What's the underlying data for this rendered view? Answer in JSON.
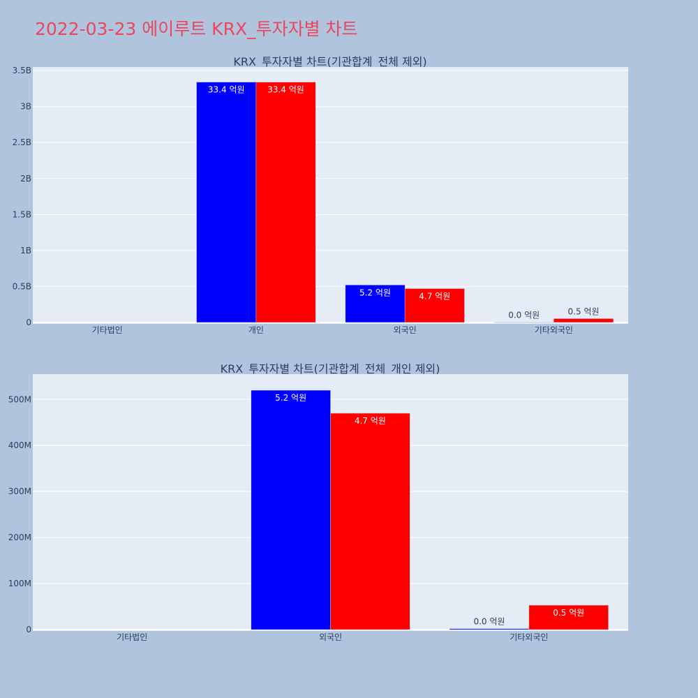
{
  "page": {
    "title": "2022-03-23 에이루트 KRX_투자자별 차트"
  },
  "chart_data": [
    {
      "type": "bar",
      "title": "KRX_투자자별 차트(기관합계_전체 제외)",
      "categories": [
        "기타법인",
        "개인",
        "외국인",
        "기타외국인"
      ],
      "series": [
        {
          "values": [
            0,
            3340000000,
            520000000,
            2000000
          ],
          "labels": [
            "",
            "33.4 억원",
            "5.2 억원",
            "0.0 억원"
          ],
          "color": "#0000ff"
        },
        {
          "values": [
            0,
            3340000000,
            470000000,
            53000000
          ],
          "labels": [
            "",
            "33.4 억원",
            "4.7 억원",
            "0.5 억원"
          ],
          "color": "#ff0000"
        }
      ],
      "ylim": [
        -20000000,
        3550000000
      ],
      "yticks": [
        0,
        500000000,
        1000000000,
        1500000000,
        2000000000,
        2500000000,
        3000000000,
        3500000000
      ],
      "ytick_labels": [
        "0",
        "0.5B",
        "1B",
        "1.5B",
        "2B",
        "2.5B",
        "3B",
        "3.5B"
      ],
      "grid": true,
      "plot_background": "#e5ecf6"
    },
    {
      "type": "bar",
      "title": "KRX_투자자별 차트(기관합계_전체_개인 제외)",
      "categories": [
        "기타법인",
        "외국인",
        "기타외국인"
      ],
      "series": [
        {
          "values": [
            0,
            520000000,
            2000000
          ],
          "labels": [
            "",
            "5.2 억원",
            "0.0 억원"
          ],
          "color": "#0000ff"
        },
        {
          "values": [
            0,
            470000000,
            53000000
          ],
          "labels": [
            "",
            "4.7 억원",
            "0.5 억원"
          ],
          "color": "#ff0000"
        }
      ],
      "ylim": [
        -3000000,
        555000000
      ],
      "yticks": [
        0,
        100000000,
        200000000,
        300000000,
        400000000,
        500000000
      ],
      "ytick_labels": [
        "0",
        "100M",
        "200M",
        "300M",
        "400M",
        "500M"
      ],
      "grid": true,
      "plot_background": "#e5ecf6"
    }
  ]
}
